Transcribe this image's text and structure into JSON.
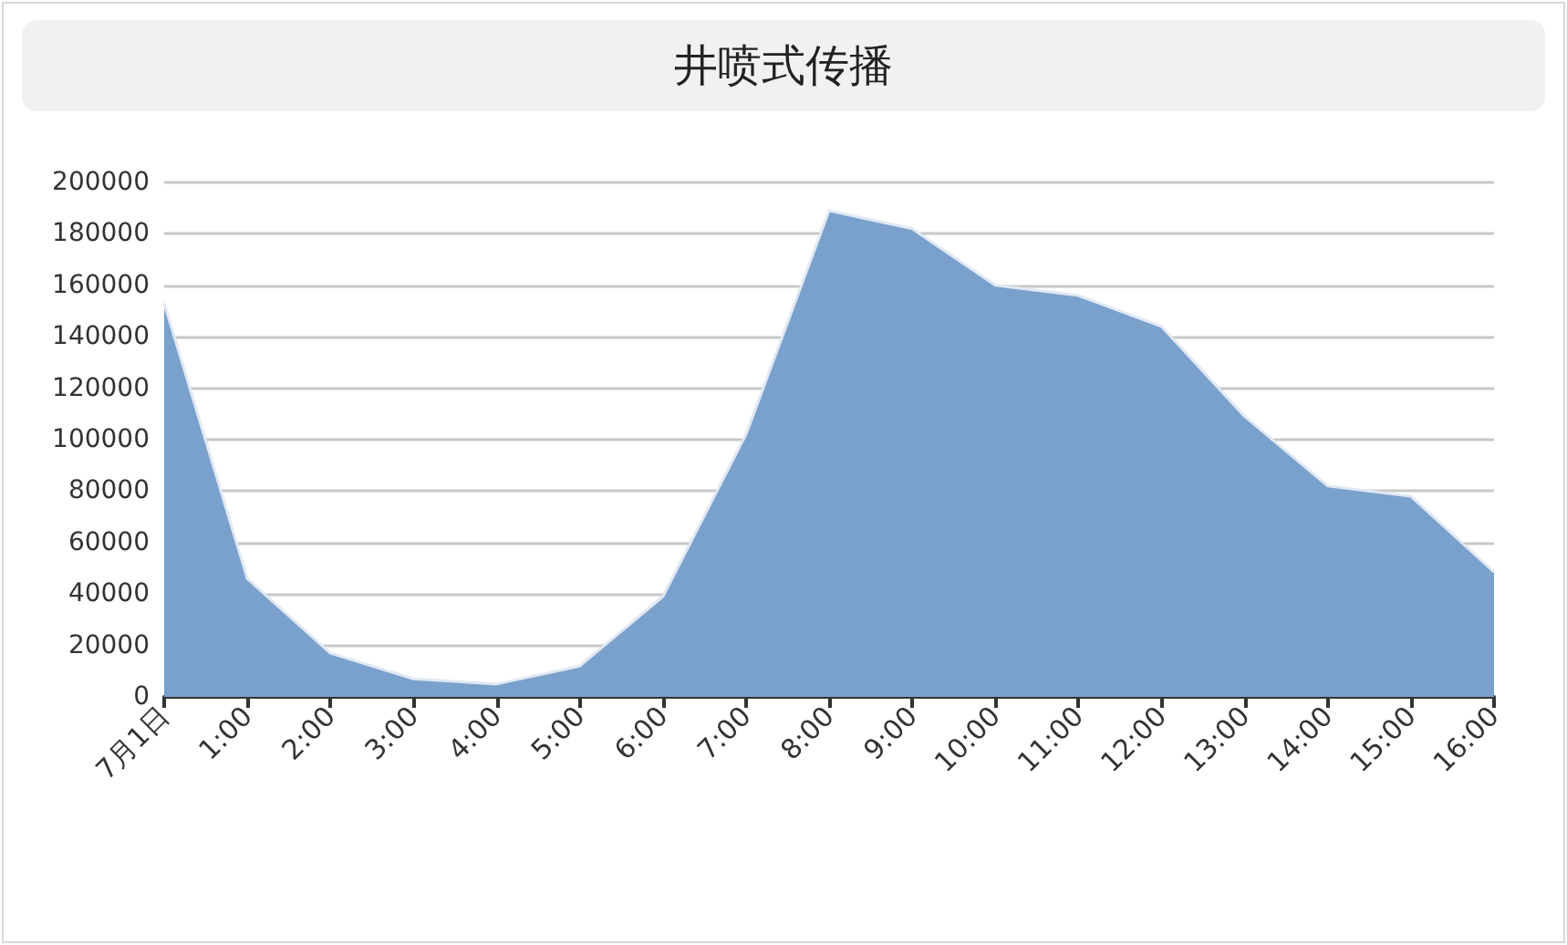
{
  "chart_data": {
    "type": "area",
    "title": "井喷式传播",
    "categories": [
      "7月1日",
      "1:00",
      "2:00",
      "3:00",
      "4:00",
      "5:00",
      "6:00",
      "7:00",
      "8:00",
      "9:00",
      "10:00",
      "11:00",
      "12:00",
      "13:00",
      "14:00",
      "15:00",
      "16:00"
    ],
    "series": [
      {
        "color": "#7aa0cc",
        "values": [
          153000,
          46000,
          17000,
          7000,
          5000,
          12000,
          39000,
          102000,
          189000,
          182000,
          160000,
          156000,
          144000,
          109000,
          82000,
          78000,
          48500
        ]
      }
    ],
    "ylim": [
      0,
      200000
    ],
    "yticks": [
      0,
      20000,
      40000,
      60000,
      80000,
      100000,
      120000,
      140000,
      160000,
      180000,
      200000
    ],
    "grid": "y",
    "marker": "none"
  }
}
